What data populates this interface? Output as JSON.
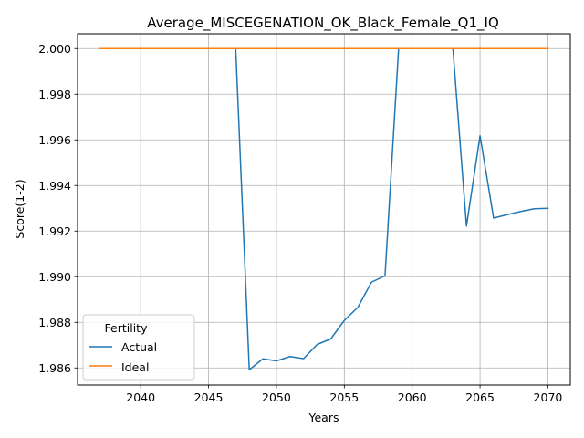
{
  "chart_data": {
    "type": "line",
    "title": "Average_MISCEGENATION_OK_Black_Female_Q1_IQ",
    "xlabel": "Years",
    "ylabel": "Score(1-2)",
    "xlim": [
      2035.35,
      2071.65
    ],
    "ylim": [
      1.98525,
      2.00065
    ],
    "y_range": [
      1.98525,
      2.00065
    ],
    "xticks": [
      2040,
      2045,
      2050,
      2055,
      2060,
      2065,
      2070
    ],
    "xtick_labels": [
      "2040",
      "2045",
      "2050",
      "2055",
      "2060",
      "2065",
      "2070"
    ],
    "yticks": [
      1.986,
      1.988,
      1.99,
      1.992,
      1.994,
      1.996,
      1.998,
      2.0
    ],
    "ytick_labels": [
      "1.986",
      "1.988",
      "1.990",
      "1.992",
      "1.994",
      "1.996",
      "1.998",
      "2.000"
    ],
    "grid": true,
    "legend": {
      "title": "Fertility",
      "placement": "lower-left"
    },
    "series": [
      {
        "name": "Actual",
        "color": "#1f77b4",
        "x": [
          2037,
          2038,
          2039,
          2040,
          2041,
          2042,
          2043,
          2044,
          2045,
          2046,
          2047,
          2048,
          2049,
          2050,
          2051,
          2052,
          2053,
          2054,
          2055,
          2056,
          2057,
          2058,
          2059,
          2060,
          2061,
          2062,
          2063,
          2064,
          2065,
          2066,
          2067,
          2068,
          2069,
          2070
        ],
        "y": [
          2.0,
          2.0,
          2.0,
          2.0,
          2.0,
          2.0,
          2.0,
          2.0,
          2.0,
          2.0,
          2.0,
          1.98592,
          1.9864,
          1.98631,
          1.9865,
          1.98641,
          1.98703,
          1.98727,
          1.98808,
          1.98866,
          1.98976,
          1.99004,
          2.0,
          2.0,
          2.0,
          2.0,
          2.0,
          1.99222,
          1.99618,
          1.99257,
          1.99272,
          1.99286,
          1.99298,
          1.993
        ]
      },
      {
        "name": "Ideal",
        "color": "#ff7f0e",
        "x": [
          2037,
          2038,
          2039,
          2040,
          2041,
          2042,
          2043,
          2044,
          2045,
          2046,
          2047,
          2048,
          2049,
          2050,
          2051,
          2052,
          2053,
          2054,
          2055,
          2056,
          2057,
          2058,
          2059,
          2060,
          2061,
          2062,
          2063,
          2064,
          2065,
          2066,
          2067,
          2068,
          2069,
          2070
        ],
        "y": [
          2.0,
          2.0,
          2.0,
          2.0,
          2.0,
          2.0,
          2.0,
          2.0,
          2.0,
          2.0,
          2.0,
          2.0,
          2.0,
          2.0,
          2.0,
          2.0,
          2.0,
          2.0,
          2.0,
          2.0,
          2.0,
          2.0,
          2.0,
          2.0,
          2.0,
          2.0,
          2.0,
          2.0,
          2.0,
          2.0,
          2.0,
          2.0,
          2.0,
          2.0
        ]
      }
    ]
  }
}
